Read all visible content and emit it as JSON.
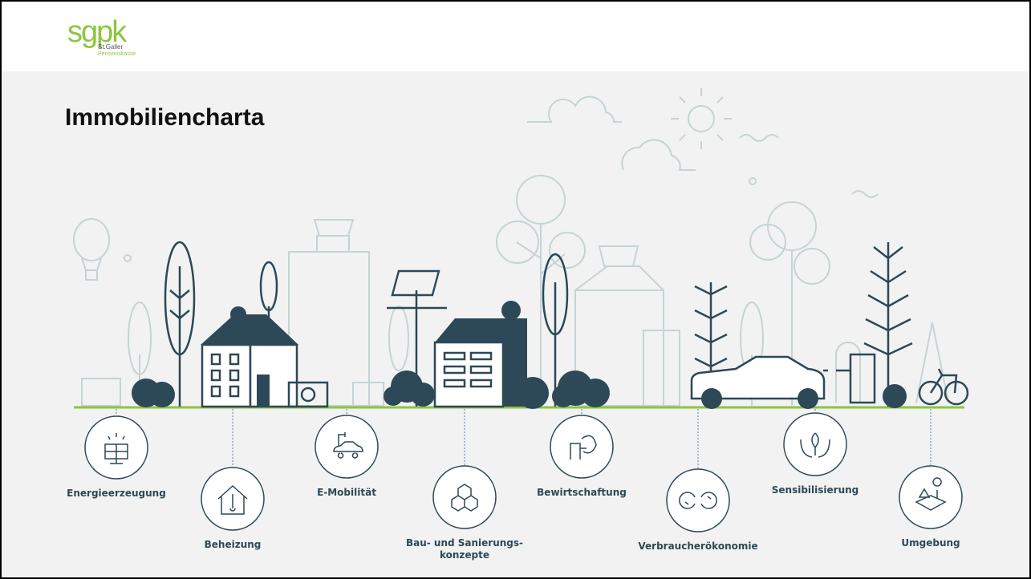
{
  "logo": {
    "name": "sgpk",
    "line1": "St.Galler",
    "line2": "Pensionskasse"
  },
  "title": "Immobiliencharta",
  "items": [
    {
      "lines": [
        "Energieerzeugung"
      ]
    },
    {
      "lines": [
        "Beheizung"
      ]
    },
    {
      "lines": [
        "E-Mobilität"
      ]
    },
    {
      "lines": [
        "Bau- und Sanierungs-",
        "konzepte"
      ]
    },
    {
      "lines": [
        "Bewirtschaftung"
      ]
    },
    {
      "lines": [
        "Verbraucherökonomie"
      ]
    },
    {
      "lines": [
        "Sensibilisierung"
      ]
    },
    {
      "lines": [
        "Umgebung"
      ]
    }
  ]
}
